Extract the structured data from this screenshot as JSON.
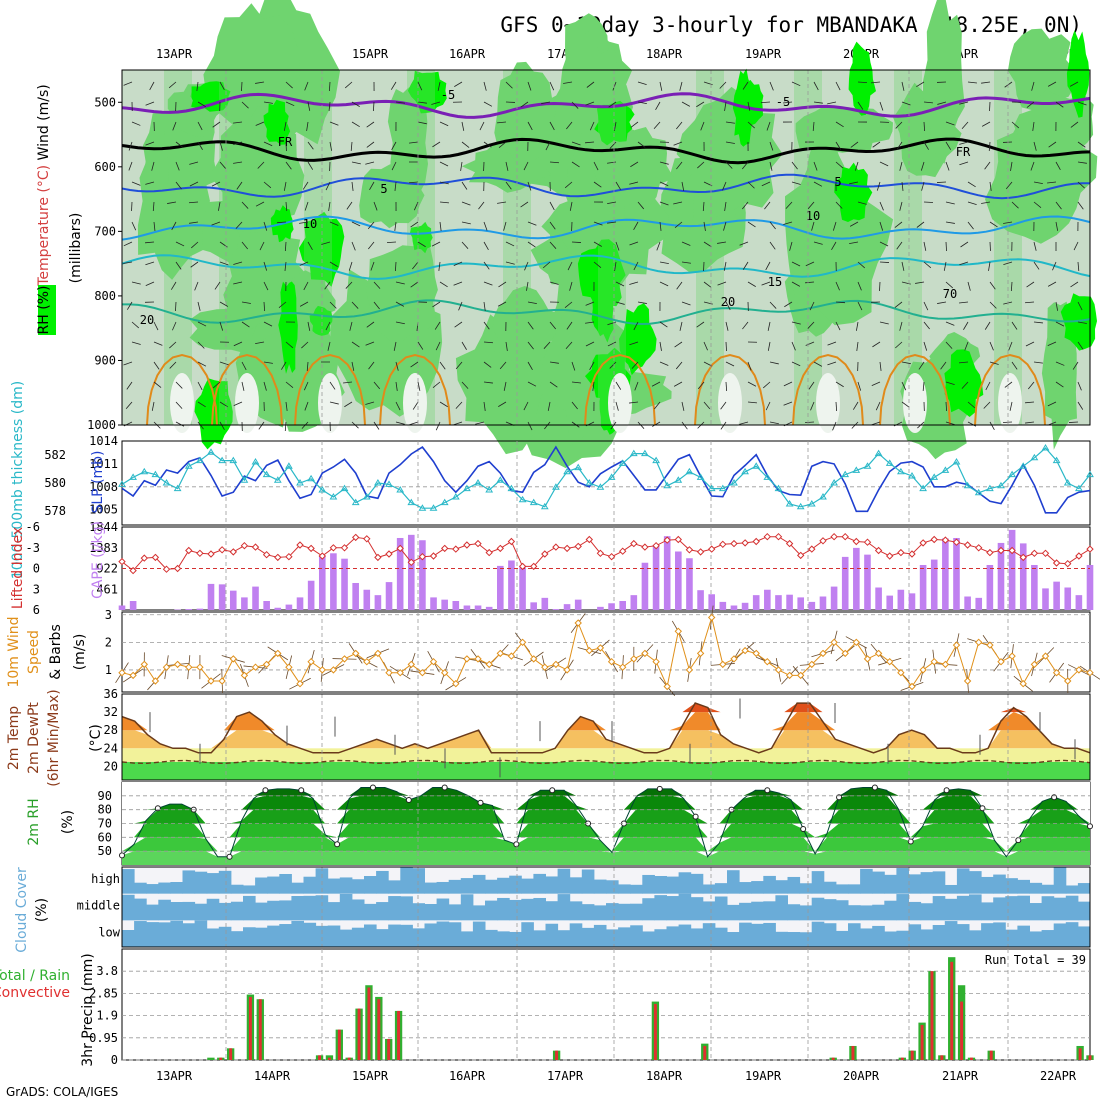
{
  "chart_data": {
    "type": "line",
    "title": "GFS 0~10day 3-hourly for MBANDAKA (18.25E, 0N)",
    "footer": "GrADS: COLA/IGES",
    "x_labels": [
      "13APR",
      "14APR",
      "15APR",
      "16APR",
      "17APR",
      "18APR",
      "19APR",
      "20APR",
      "21APR",
      "22APR"
    ],
    "colors": {
      "rh_light": "#c8dcc8",
      "rh_mid": "#6fd46f",
      "rh_high": "#00f000",
      "temp_minus5": "#7a1fb5",
      "temp_fr": "#000000",
      "temp_5": "#1f4fd9",
      "temp_10": "#1f9ae6",
      "temp_15": "#20b8c8",
      "temp_20": "#22b090",
      "temp_warm": "#e08a1a",
      "slp": "#1f3fcf",
      "thickness": "#2ab8c8",
      "li": "#d43030",
      "cape": "#c080f0",
      "wind10": "#e0901a",
      "precip_total": "#30b030",
      "precip_conv": "#e03030",
      "cloud": "#6aacd8"
    },
    "panels": [
      {
        "name": "upper-air",
        "labels": [
          {
            "text": "Wind (m/s)",
            "color": "#000000"
          },
          {
            "text": "Temperature (°C)",
            "color": "#d44040"
          },
          {
            "text": "RH (%)",
            "color": "#000000"
          },
          {
            "text": "(millibars)",
            "color": "#000000"
          }
        ],
        "y_ticks": [
          "500",
          "600",
          "700",
          "800",
          "900",
          "1000"
        ],
        "ylim": [
          450,
          1000
        ],
        "contour_labels": [
          "-5",
          "-5",
          "FR",
          "FR",
          "5",
          "5",
          "10",
          "10",
          "15",
          "20",
          "20",
          "70"
        ]
      },
      {
        "name": "slp-thickness",
        "labels": [
          {
            "text": "1000-500mb thickness (dm)",
            "color": "#2ab8c8"
          },
          {
            "text": "SLP (mb)",
            "color": "#1f3fcf"
          }
        ],
        "y_ticks_left": [
          "582",
          "580",
          "578"
        ],
        "y_ticks_right": [
          "1014",
          "1011",
          "1008",
          "1005"
        ],
        "slp_ylim": [
          1003,
          1014
        ],
        "slp": [
          1007.8,
          1006.8,
          1008.8,
          1008.2,
          1010.2,
          1009.8,
          1011.3,
          1011.8,
          1009.5,
          1006.8,
          1007.3,
          1009.4,
          1008.8,
          1010.8,
          1011.5,
          1008.8,
          1006.5,
          1007.0,
          1009.8,
          1010.6,
          1011.6,
          1009.8,
          1006.8,
          1006.5,
          1009.8,
          1010.9,
          1012.3,
          1013.2,
          1011.3,
          1008.8,
          1007.3,
          1008.8,
          1010.7,
          1011.3,
          1009.8,
          1007.5,
          1007.3,
          1009.9,
          1010.9,
          1013.2,
          1010.7,
          1008.6,
          1008.0,
          1009.7,
          1010.6,
          1011.4,
          1009.5,
          1007.6,
          1007.6,
          1009.6,
          1011.6,
          1012.2,
          1009.4,
          1006.8,
          1006.7,
          1009.5,
          1010.8,
          1012.2,
          1009.5,
          1007.5,
          1007.0,
          1006.9,
          1010.7,
          1011.3,
          1011.0,
          1008.4,
          1004.8,
          1004.8,
          1007.6,
          1010.0,
          1011.1,
          1011.3,
          1010.6,
          1008.0,
          1008.0,
          1008.6,
          1008.3,
          1007.2,
          1006.1,
          1005.8,
          1008.2,
          1010.9,
          1008.2,
          1004.6,
          1004.6,
          1006.6,
          1007.3,
          1007.5
        ],
        "thickness_ylim": [
          577,
          583
        ],
        "thickness": [
          579.9,
          580.4,
          580.8,
          580.6,
          580.0,
          579.6,
          581.2,
          581.6,
          582.2,
          581.6,
          581.6,
          580.2,
          581.5,
          580.6,
          580.2,
          581.2,
          580.0,
          580.3,
          579.5,
          579.0,
          579.6,
          578.6,
          579.0,
          580.0,
          579.9,
          579.5,
          578.6,
          578.2,
          578.2,
          578.6,
          579.0,
          579.6,
          580.0,
          579.5,
          580.2,
          579.6,
          578.8,
          578.6,
          578.3,
          579.7,
          580.8,
          581.1,
          580.0,
          579.7,
          580.4,
          581.4,
          582.1,
          582.1,
          581.6,
          579.8,
          580.2,
          580.8,
          580.4,
          579.6,
          579.6,
          580.0,
          580.8,
          581.2,
          580.4,
          579.6,
          578.5,
          578.3,
          578.5,
          579.0,
          580.0,
          580.6,
          580.9,
          581.2,
          582.1,
          581.4,
          580.8,
          580.5,
          579.6,
          580.4,
          580.9,
          581.5,
          579.8,
          579.3,
          579.6,
          579.8,
          580.6,
          581.2,
          581.8,
          582.5,
          581.6,
          580.0,
          579.6,
          580.6
        ]
      },
      {
        "name": "li-cape",
        "labels": [
          {
            "text": "Lifted Index",
            "color": "#d43030"
          },
          {
            "text": "CAPE (J/kg)",
            "color": "#c080f0"
          }
        ],
        "y_ticks_left": [
          "-6",
          "-3",
          "0",
          "3",
          "6"
        ],
        "y_ticks_right": [
          "1844",
          "1383",
          "922",
          "461"
        ],
        "li_ylim": [
          6,
          -6
        ],
        "lifted_index": [
          -1.0,
          0.3,
          -1.5,
          -1.6,
          0.1,
          0.0,
          -2.6,
          -2.2,
          -2.1,
          -2.7,
          -2.4,
          -3.3,
          -3.1,
          -2.0,
          -1.6,
          -1.7,
          -3.4,
          -2.9,
          -1.8,
          -3.0,
          -3.0,
          -4.5,
          -4.3,
          -1.6,
          -2.1,
          -2.9,
          -0.9,
          -1.7,
          -1.8,
          -2.9,
          -2.8,
          -3.4,
          -3.6,
          -2.3,
          -2.9,
          -3.9,
          -0.3,
          -0.3,
          -2.1,
          -3.1,
          -2.9,
          -3.2,
          -4.2,
          -2.2,
          -1.7,
          -2.5,
          -3.6,
          -3.1,
          -3.3,
          -4.1,
          -4.2,
          -2.7,
          -2.4,
          -2.8,
          -3.5,
          -3.6,
          -3.7,
          -3.9,
          -4.6,
          -4.6,
          -3.6,
          -1.9,
          -2.8,
          -4.0,
          -4.6,
          -4.6,
          -3.9,
          -3.8,
          -2.6,
          -1.8,
          -2.3,
          -2.1,
          -3.7,
          -4.2,
          -4.1,
          -3.8,
          -3.4,
          -3.0,
          -2.3,
          -2.6,
          -2.6,
          -1.6,
          -2.2,
          -2.2,
          -0.8,
          -0.7,
          -1.8,
          -2.8
        ],
        "cape_ylim": [
          0,
          1844
        ],
        "cape": [
          100,
          200,
          0,
          0,
          0,
          10,
          20,
          30,
          580,
          570,
          430,
          280,
          520,
          200,
          50,
          120,
          280,
          650,
          1200,
          1260,
          1140,
          600,
          450,
          330,
          620,
          1600,
          1670,
          1550,
          280,
          230,
          200,
          100,
          100,
          70,
          980,
          1100,
          950,
          170,
          270,
          20,
          130,
          230,
          0,
          70,
          150,
          200,
          330,
          1050,
          1450,
          1640,
          1300,
          1150,
          440,
          350,
          180,
          100,
          160,
          330,
          450,
          330,
          340,
          280,
          180,
          300,
          520,
          1180,
          1380,
          1230,
          500,
          320,
          450,
          370,
          1000,
          1120,
          1590,
          1600,
          300,
          270,
          1000,
          1490,
          1780,
          1480,
          1000,
          480,
          630,
          500,
          330,
          1000
        ],
        "ref_line": 0
      },
      {
        "name": "wind10",
        "labels": [
          {
            "text": "10m Wind",
            "color": "#e0901a"
          },
          {
            "text": "Speed",
            "color": "#e0901a"
          },
          {
            "text": "& Barbs",
            "color": "#000000"
          },
          {
            "text": "(m/s)",
            "color": "#000000"
          }
        ],
        "y_ticks": [
          "3",
          "2",
          "1"
        ],
        "ylim": [
          0.2,
          3.1
        ],
        "speed": [
          0.9,
          0.8,
          1.2,
          0.6,
          1.1,
          1.2,
          1.1,
          1.1,
          0.6,
          0.6,
          1.4,
          0.8,
          1.1,
          1.2,
          1.6,
          1.1,
          0.5,
          1.3,
          1.0,
          1.0,
          1.4,
          1.6,
          1.3,
          1.6,
          0.9,
          0.9,
          1.2,
          0.9,
          1.3,
          0.9,
          0.5,
          1.4,
          1.4,
          1.2,
          1.6,
          1.5,
          2.0,
          1.4,
          1.1,
          1.2,
          1.0,
          2.7,
          1.7,
          1.8,
          1.3,
          1.1,
          1.4,
          1.6,
          1.3,
          0.4,
          2.4,
          1.0,
          1.6,
          2.9,
          1.2,
          1.4,
          1.7,
          1.6,
          1.3,
          1.0,
          0.8,
          0.8,
          1.2,
          1.6,
          2.0,
          1.6,
          2.0,
          1.4,
          1.6,
          1.3,
          0.9,
          0.4,
          1.0,
          1.3,
          1.2,
          1.9,
          0.6,
          2.0,
          1.9,
          1.3,
          1.5,
          0.5,
          1.2,
          1.5,
          0.9,
          0.6,
          1.0,
          0.9
        ]
      },
      {
        "name": "t2m",
        "labels": [
          {
            "text": "2m Temp",
            "color": "#8b3a1a"
          },
          {
            "text": "2m DewPt",
            "color": "#8b3a1a"
          },
          {
            "text": "(6hr Min/Max)",
            "color": "#8b3a1a"
          },
          {
            "text": "(°C)",
            "color": "#000000"
          }
        ],
        "y_ticks": [
          "36",
          "32",
          "28",
          "24",
          "20"
        ],
        "ylim": [
          17,
          36
        ],
        "temp": [
          31,
          30,
          27,
          25,
          24,
          24,
          23,
          23,
          26,
          31,
          32,
          30,
          27,
          25,
          24,
          23,
          23,
          23,
          24,
          25,
          26,
          25,
          24,
          25,
          24,
          25,
          26,
          27,
          28,
          23,
          23,
          23,
          23,
          23,
          24,
          28,
          31,
          30,
          26,
          25,
          24,
          23,
          23,
          24,
          29,
          34,
          33,
          27,
          25,
          24,
          23,
          24,
          29,
          34,
          34,
          30,
          26,
          25,
          24,
          23,
          24,
          27,
          28,
          27,
          24,
          24,
          23,
          23,
          24,
          30,
          33,
          31,
          28,
          25,
          24,
          24,
          23
        ],
        "dewpoint": [
          21,
          21,
          21,
          21,
          21,
          21,
          21,
          21,
          21,
          21,
          21,
          21,
          21,
          21,
          21,
          21,
          21,
          21,
          21,
          21,
          21,
          21,
          21,
          21,
          21,
          21,
          21,
          21,
          21,
          21,
          21,
          21,
          21,
          21,
          21,
          21,
          21,
          21,
          21,
          21,
          21,
          21,
          21,
          21,
          21,
          21,
          21,
          21,
          21,
          21,
          21,
          21,
          21,
          21,
          21,
          21,
          21,
          21,
          21,
          21,
          21,
          21,
          21,
          21,
          21,
          21,
          21,
          21,
          21,
          21,
          21,
          21,
          21,
          21,
          21,
          21,
          21
        ]
      },
      {
        "name": "rh2m",
        "labels": [
          {
            "text": "2m RH",
            "color": "#2aa02a"
          },
          {
            "text": "(%)",
            "color": "#000000"
          }
        ],
        "y_ticks": [
          "90",
          "80",
          "70",
          "60",
          "50"
        ],
        "ylim": [
          40,
          100
        ],
        "rh": [
          47,
          55,
          72,
          81,
          84,
          84,
          80,
          59,
          46,
          46,
          72,
          88,
          94,
          95,
          95,
          94,
          88,
          62,
          55,
          88,
          96,
          96,
          96,
          93,
          87,
          90,
          96,
          96,
          94,
          90,
          85,
          83,
          58,
          55,
          87,
          94,
          94,
          94,
          83,
          70,
          58,
          49,
          70,
          89,
          95,
          95,
          95,
          88,
          75,
          46,
          56,
          80,
          88,
          94,
          94,
          92,
          87,
          66,
          48,
          63,
          89,
          95,
          96,
          96,
          94,
          80,
          57,
          68,
          87,
          94,
          95,
          94,
          81,
          58,
          46,
          58,
          74,
          86,
          89,
          86,
          76,
          68
        ]
      },
      {
        "name": "cloud",
        "labels": [
          {
            "text": "Cloud Cover",
            "color": "#6aacd8"
          },
          {
            "text": "(%)",
            "color": "#000000"
          }
        ],
        "y_ticks": [
          "high",
          "middle",
          "low"
        ]
      },
      {
        "name": "precip",
        "labels": [
          {
            "text": "Total / Rain",
            "color": "#30b030"
          },
          {
            "text": "Convective",
            "color": "#e03030"
          },
          {
            "text": "3hr Precip (mm)",
            "color": "#000000"
          }
        ],
        "y_ticks": [
          "3.8",
          "2.85",
          "1.9",
          "0.95",
          "0"
        ],
        "ylim": [
          0,
          4.75
        ],
        "run_total": "Run Total = 39",
        "total": [
          0,
          0,
          0,
          0,
          0,
          0,
          0,
          0,
          0,
          0.1,
          0.1,
          0.5,
          0,
          2.8,
          2.6,
          0,
          0,
          0,
          0,
          0,
          0.2,
          0.2,
          1.3,
          0.1,
          2.2,
          3.2,
          2.7,
          0.9,
          2.1,
          0,
          0,
          0,
          0,
          0,
          0,
          0,
          0,
          0,
          0,
          0,
          0,
          0,
          0,
          0,
          0.4,
          0,
          0,
          0,
          0,
          0,
          0,
          0,
          0,
          0,
          2.5,
          0,
          0,
          0,
          0,
          0.7,
          0,
          0,
          0,
          0,
          0,
          0,
          0,
          0,
          0,
          0,
          0,
          0,
          0.1,
          0,
          0.6,
          0,
          0,
          0,
          0,
          0.1,
          0.4,
          1.6,
          3.8,
          0.2,
          4.4,
          3.2,
          0.1,
          0,
          0.4,
          0,
          0,
          0,
          0,
          0,
          0,
          0,
          0,
          0.6,
          0.2
        ],
        "convective": [
          0,
          0,
          0,
          0,
          0,
          0,
          0,
          0,
          0,
          0,
          0.1,
          0.5,
          0,
          2.7,
          2.6,
          0,
          0,
          0,
          0,
          0,
          0.2,
          0.1,
          1.3,
          0.1,
          2.2,
          3.1,
          2.6,
          0.9,
          2.1,
          0,
          0,
          0,
          0,
          0,
          0,
          0,
          0,
          0,
          0,
          0,
          0,
          0,
          0,
          0,
          0.4,
          0,
          0,
          0,
          0,
          0,
          0,
          0,
          0,
          0,
          2.4,
          0,
          0,
          0,
          0,
          0.6,
          0,
          0,
          0,
          0,
          0,
          0,
          0,
          0,
          0,
          0,
          0,
          0,
          0.1,
          0,
          0.6,
          0,
          0,
          0,
          0,
          0.1,
          0.4,
          1.5,
          3.8,
          0.2,
          4.2,
          2.5,
          0.1,
          0,
          0.4,
          0,
          0,
          0,
          0,
          0,
          0,
          0,
          0,
          0.5,
          0.2
        ]
      }
    ]
  }
}
